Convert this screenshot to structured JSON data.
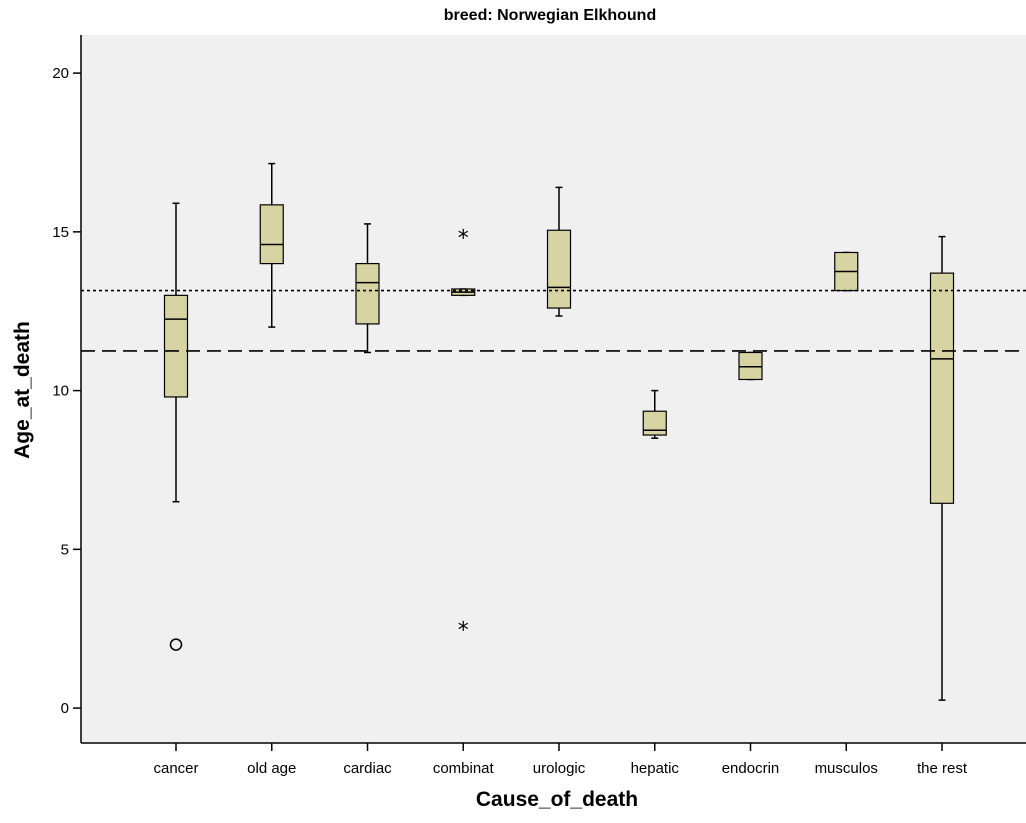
{
  "chart_data": {
    "type": "boxplot",
    "title": "breed: Norwegian Elkhound",
    "xlabel": "Cause_of_death",
    "ylabel": "Age_at_death",
    "ylim": [
      -1.1,
      21.2
    ],
    "yticks": [
      0,
      5,
      10,
      15,
      20
    ],
    "grid": false,
    "background_color": "#f0f0f0",
    "box_color": "#d8d3a3",
    "categories": [
      "cancer",
      "old age",
      "cardiac",
      "combinat",
      "urologic",
      "hepatic",
      "endocrin",
      "musculos",
      "the rest"
    ],
    "boxes": [
      {
        "category": "cancer",
        "whisker_low": 6.5,
        "q1": 9.8,
        "median": 12.25,
        "q3": 13.0,
        "whisker_high": 15.9
      },
      {
        "category": "old age",
        "whisker_low": 12.0,
        "q1": 14.0,
        "median": 14.6,
        "q3": 15.85,
        "whisker_high": 17.15
      },
      {
        "category": "cardiac",
        "whisker_low": 11.2,
        "q1": 12.1,
        "median": 13.4,
        "q3": 14.0,
        "whisker_high": 15.25
      },
      {
        "category": "combinat",
        "whisker_low": 13.0,
        "q1": 13.0,
        "median": 13.1,
        "q3": 13.2,
        "whisker_high": 13.2
      },
      {
        "category": "urologic",
        "whisker_low": 12.35,
        "q1": 12.6,
        "median": 13.25,
        "q3": 15.05,
        "whisker_high": 16.4
      },
      {
        "category": "hepatic",
        "whisker_low": 8.5,
        "q1": 8.6,
        "median": 8.75,
        "q3": 9.35,
        "whisker_high": 10.0
      },
      {
        "category": "endocrin",
        "whisker_low": 10.35,
        "q1": 10.35,
        "median": 10.75,
        "q3": 11.2,
        "whisker_high": 11.2
      },
      {
        "category": "musculos",
        "whisker_low": 13.15,
        "q1": 13.15,
        "median": 13.75,
        "q3": 14.35,
        "whisker_high": 14.35
      },
      {
        "category": "the rest",
        "whisker_low": 0.25,
        "q1": 6.45,
        "median": 11.0,
        "q3": 13.7,
        "whisker_high": 14.85
      }
    ],
    "outliers": [
      {
        "category": "cancer",
        "value": 2.0,
        "marker": "circle"
      }
    ],
    "extremes": [
      {
        "category": "combinat",
        "value": 14.85,
        "marker": "star"
      },
      {
        "category": "combinat",
        "value": 2.5,
        "marker": "star"
      }
    ],
    "reference_lines": [
      {
        "value": 13.15,
        "style": "dotted"
      },
      {
        "value": 11.25,
        "style": "dashed"
      }
    ]
  }
}
